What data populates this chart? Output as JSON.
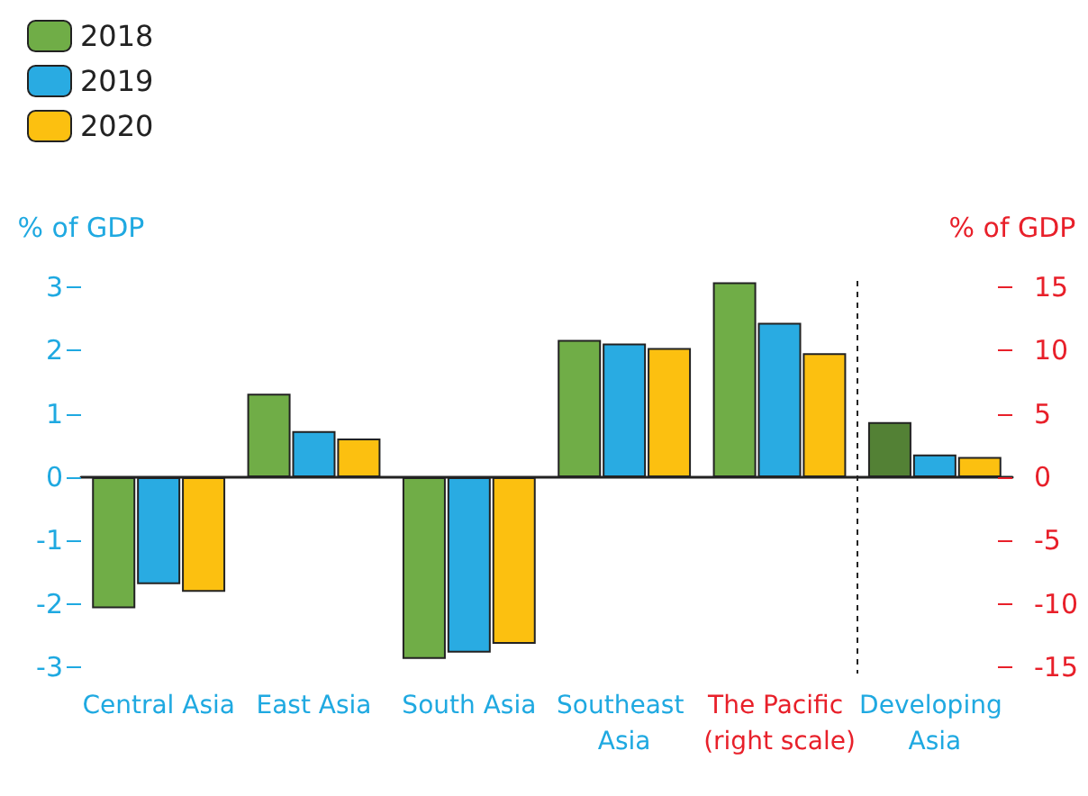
{
  "chart_data": {
    "type": "bar",
    "categories": [
      "Central Asia",
      "East Asia",
      "South Asia",
      "Southeast Asia",
      "The Pacific (right scale)",
      "Developing Asia"
    ],
    "series": [
      {
        "name": "2018",
        "color": "#70ad47",
        "colors": [
          "#70ad47",
          "#70ad47",
          "#70ad47",
          "#70ad47",
          null,
          "#538135"
        ],
        "values": [
          -2.07,
          1.32,
          -2.87,
          2.17,
          null,
          0.87
        ]
      },
      {
        "name": "2019",
        "color": "#29abe2",
        "values": [
          -1.69,
          0.73,
          -2.77,
          2.11,
          null,
          0.36
        ]
      },
      {
        "name": "2020",
        "color": "#fcc010",
        "values": [
          -1.81,
          0.61,
          -2.63,
          2.04,
          null,
          0.32
        ]
      },
      {
        "color": "#70ad47",
        "axis": "y2",
        "values": [
          null,
          null,
          null,
          null,
          15.4,
          null
        ]
      },
      {
        "color": "#29abe2",
        "axis": "y2",
        "values": [
          null,
          null,
          null,
          null,
          12.2,
          null
        ]
      },
      {
        "color": "#fcc010",
        "axis": "y2",
        "values": [
          null,
          null,
          null,
          null,
          9.8,
          null
        ]
      }
    ],
    "ylabel": "% of GDP",
    "y2label": "% of GDP",
    "ylim": [
      -3.1,
      3.1
    ],
    "yticks": [
      -3,
      -2,
      -1,
      0,
      1,
      2,
      3
    ],
    "y2lim": [
      -15.5,
      15.5
    ],
    "y2ticks": [
      -15,
      -10,
      -5,
      0,
      5,
      10,
      15
    ],
    "ref_lines": [
      {
        "axis": "x",
        "value": "Developing Asia",
        "color": "#222222",
        "line_style": "dashed"
      }
    ],
    "grid": false,
    "legend": "top left"
  }
}
